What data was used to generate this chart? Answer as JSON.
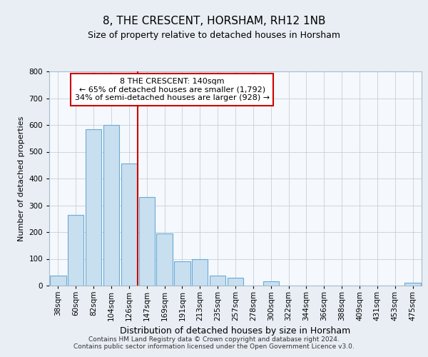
{
  "title": "8, THE CRESCENT, HORSHAM, RH12 1NB",
  "subtitle": "Size of property relative to detached houses in Horsham",
  "xlabel": "Distribution of detached houses by size in Horsham",
  "ylabel": "Number of detached properties",
  "bar_values": [
    38,
    265,
    585,
    600,
    455,
    330,
    195,
    90,
    100,
    38,
    30,
    0,
    15,
    0,
    0,
    0,
    0,
    0,
    0,
    0,
    12
  ],
  "categories": [
    "38sqm",
    "60sqm",
    "82sqm",
    "104sqm",
    "126sqm",
    "147sqm",
    "169sqm",
    "191sqm",
    "213sqm",
    "235sqm",
    "257sqm",
    "278sqm",
    "300sqm",
    "322sqm",
    "344sqm",
    "366sqm",
    "388sqm",
    "409sqm",
    "431sqm",
    "453sqm",
    "475sqm"
  ],
  "bar_color": "#c8dff0",
  "bar_edge_color": "#6aaad4",
  "highlight_line_color": "#cc0000",
  "annotation_box_text": "8 THE CRESCENT: 140sqm\n← 65% of detached houses are smaller (1,792)\n34% of semi-detached houses are larger (928) →",
  "annotation_box_color": "#cc0000",
  "ylim": [
    0,
    800
  ],
  "yticks": [
    0,
    100,
    200,
    300,
    400,
    500,
    600,
    700,
    800
  ],
  "background_color": "#e8eef4",
  "plot_background_color": "#f5f8fc",
  "grid_color": "#c0c8d4",
  "footer_text": "Contains HM Land Registry data © Crown copyright and database right 2024.\nContains public sector information licensed under the Open Government Licence v3.0.",
  "title_fontsize": 11,
  "subtitle_fontsize": 9,
  "xlabel_fontsize": 9,
  "ylabel_fontsize": 8,
  "tick_fontsize": 7.5,
  "footer_fontsize": 6.5
}
